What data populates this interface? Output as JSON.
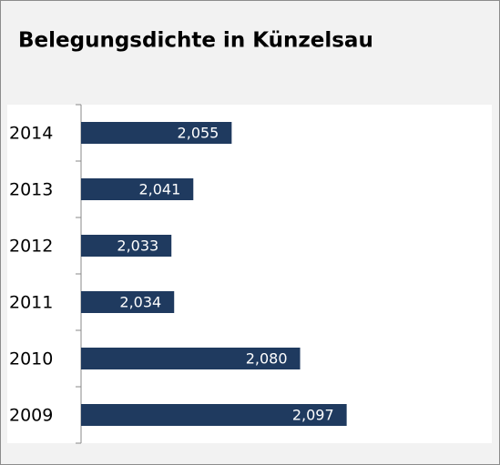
{
  "chart_data": {
    "type": "barh",
    "title": "Belegungsdichte in Künzelsau",
    "categories": [
      "2014",
      "2013",
      "2012",
      "2011",
      "2010",
      "2009"
    ],
    "values": [
      2.055,
      2.041,
      2.033,
      2.034,
      2.08,
      2.097
    ],
    "value_labels": [
      "2,055",
      "2,041",
      "2,033",
      "2,034",
      "2,080",
      "2,097"
    ],
    "color": "#1f3a5f",
    "xlim": [
      2.0,
      2.15
    ]
  }
}
